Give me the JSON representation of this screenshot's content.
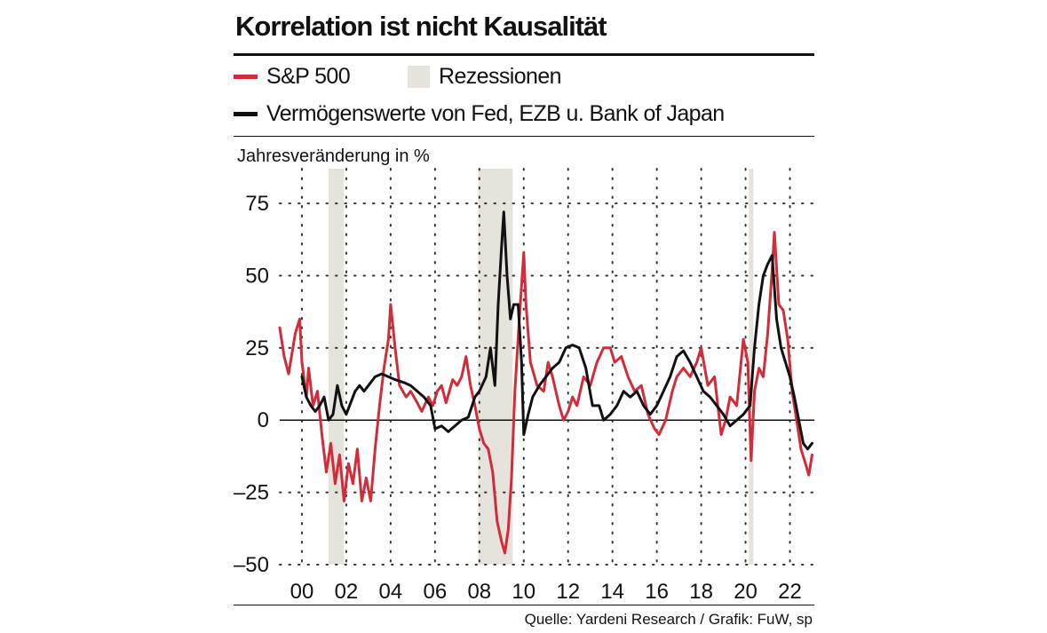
{
  "header": {
    "title": "Korrelation ist nicht Kausalität"
  },
  "legend": {
    "sp500": "S&P 500",
    "recessions": "Rezessionen",
    "assets": "Vermögenswerte von Fed, EZB u. Bank of Japan"
  },
  "source": "Quelle: Yardeni Research / Grafik: FuW, sp",
  "colors": {
    "sp500": "#d22b3a",
    "assets": "#111111",
    "recession": "#e6e3dc",
    "grid": "#333333"
  },
  "chart_data": {
    "type": "line",
    "title": "Korrelation ist nicht Kausalität",
    "ylabel": "Jahresveränderung in %",
    "xlabel": "",
    "x_unit": "year",
    "xlim": [
      1999,
      2023.1
    ],
    "ylim": [
      -50,
      87
    ],
    "y_ticks": [
      75,
      50,
      25,
      0,
      -25,
      -50
    ],
    "y_tick_labels": [
      "75",
      "50",
      "25",
      "0",
      "–25",
      "–50"
    ],
    "x_ticks": [
      2000,
      2002,
      2004,
      2006,
      2008,
      2010,
      2012,
      2014,
      2016,
      2018,
      2020,
      2022
    ],
    "x_tick_labels": [
      "00",
      "02",
      "04",
      "06",
      "08",
      "10",
      "12",
      "14",
      "16",
      "18",
      "20",
      "22"
    ],
    "grid": true,
    "legend_position": "top",
    "recessions": [
      [
        2001.2,
        2001.9
      ],
      [
        2007.95,
        2009.5
      ],
      [
        2020.15,
        2020.35
      ]
    ],
    "series": [
      {
        "name": "S&P 500",
        "color": "#d22b3a",
        "points": [
          [
            1999.0,
            32
          ],
          [
            1999.2,
            22
          ],
          [
            1999.4,
            16
          ],
          [
            1999.7,
            30
          ],
          [
            1999.9,
            35
          ],
          [
            2000.0,
            20
          ],
          [
            2000.2,
            8
          ],
          [
            2000.3,
            18
          ],
          [
            2000.5,
            5
          ],
          [
            2000.7,
            10
          ],
          [
            2000.9,
            -5
          ],
          [
            2001.1,
            -18
          ],
          [
            2001.3,
            -8
          ],
          [
            2001.5,
            -22
          ],
          [
            2001.7,
            -12
          ],
          [
            2001.9,
            -28
          ],
          [
            2002.1,
            -15
          ],
          [
            2002.3,
            -22
          ],
          [
            2002.5,
            -10
          ],
          [
            2002.7,
            -28
          ],
          [
            2002.9,
            -20
          ],
          [
            2003.1,
            -28
          ],
          [
            2003.3,
            -10
          ],
          [
            2003.5,
            5
          ],
          [
            2003.7,
            18
          ],
          [
            2003.9,
            28
          ],
          [
            2004.0,
            40
          ],
          [
            2004.2,
            25
          ],
          [
            2004.4,
            12
          ],
          [
            2004.7,
            8
          ],
          [
            2004.9,
            10
          ],
          [
            2005.2,
            6
          ],
          [
            2005.4,
            3
          ],
          [
            2005.7,
            8
          ],
          [
            2005.9,
            5
          ],
          [
            2006.1,
            10
          ],
          [
            2006.3,
            12
          ],
          [
            2006.5,
            6
          ],
          [
            2006.8,
            14
          ],
          [
            2007.0,
            12
          ],
          [
            2007.2,
            15
          ],
          [
            2007.4,
            22
          ],
          [
            2007.6,
            12
          ],
          [
            2007.8,
            5
          ],
          [
            2008.0,
            -3
          ],
          [
            2008.2,
            -8
          ],
          [
            2008.4,
            -10
          ],
          [
            2008.6,
            -18
          ],
          [
            2008.8,
            -35
          ],
          [
            2009.0,
            -42
          ],
          [
            2009.15,
            -46
          ],
          [
            2009.3,
            -38
          ],
          [
            2009.45,
            -20
          ],
          [
            2009.6,
            10
          ],
          [
            2009.8,
            35
          ],
          [
            2010.0,
            58
          ],
          [
            2010.1,
            40
          ],
          [
            2010.3,
            20
          ],
          [
            2010.6,
            12
          ],
          [
            2010.9,
            10
          ],
          [
            2011.1,
            20
          ],
          [
            2011.3,
            15
          ],
          [
            2011.6,
            5
          ],
          [
            2011.8,
            0
          ],
          [
            2012.0,
            3
          ],
          [
            2012.2,
            8
          ],
          [
            2012.4,
            5
          ],
          [
            2012.7,
            15
          ],
          [
            2013.0,
            12
          ],
          [
            2013.3,
            20
          ],
          [
            2013.6,
            25
          ],
          [
            2013.9,
            25
          ],
          [
            2014.1,
            20
          ],
          [
            2014.4,
            22
          ],
          [
            2014.7,
            15
          ],
          [
            2015.0,
            10
          ],
          [
            2015.3,
            12
          ],
          [
            2015.6,
            2
          ],
          [
            2015.9,
            -3
          ],
          [
            2016.1,
            -5
          ],
          [
            2016.4,
            0
          ],
          [
            2016.7,
            10
          ],
          [
            2016.9,
            15
          ],
          [
            2017.2,
            18
          ],
          [
            2017.5,
            15
          ],
          [
            2017.8,
            20
          ],
          [
            2018.0,
            25
          ],
          [
            2018.3,
            12
          ],
          [
            2018.6,
            15
          ],
          [
            2018.9,
            -5
          ],
          [
            2019.1,
            0
          ],
          [
            2019.3,
            8
          ],
          [
            2019.6,
            5
          ],
          [
            2019.9,
            28
          ],
          [
            2020.1,
            20
          ],
          [
            2020.25,
            -14
          ],
          [
            2020.4,
            10
          ],
          [
            2020.6,
            18
          ],
          [
            2020.8,
            15
          ],
          [
            2021.0,
            30
          ],
          [
            2021.2,
            52
          ],
          [
            2021.3,
            65
          ],
          [
            2021.5,
            40
          ],
          [
            2021.7,
            38
          ],
          [
            2021.9,
            28
          ],
          [
            2022.1,
            10
          ],
          [
            2022.3,
            0
          ],
          [
            2022.5,
            -10
          ],
          [
            2022.7,
            -15
          ],
          [
            2022.85,
            -19
          ],
          [
            2023.0,
            -12
          ]
        ]
      },
      {
        "name": "Vermögenswerte von Fed, EZB u. Bank of Japan",
        "color": "#111111",
        "points": [
          [
            2000.0,
            15
          ],
          [
            2000.2,
            8
          ],
          [
            2000.4,
            5
          ],
          [
            2000.6,
            3
          ],
          [
            2000.8,
            5
          ],
          [
            2001.0,
            8
          ],
          [
            2001.2,
            0
          ],
          [
            2001.4,
            2
          ],
          [
            2001.6,
            12
          ],
          [
            2001.8,
            5
          ],
          [
            2002.0,
            2
          ],
          [
            2002.2,
            6
          ],
          [
            2002.4,
            10
          ],
          [
            2002.6,
            12
          ],
          [
            2002.8,
            10
          ],
          [
            2003.0,
            12
          ],
          [
            2003.3,
            15
          ],
          [
            2003.6,
            16
          ],
          [
            2003.9,
            15
          ],
          [
            2004.2,
            14
          ],
          [
            2004.6,
            13
          ],
          [
            2004.9,
            12
          ],
          [
            2005.2,
            10
          ],
          [
            2005.5,
            8
          ],
          [
            2005.8,
            5
          ],
          [
            2006.0,
            -3
          ],
          [
            2006.3,
            -2
          ],
          [
            2006.6,
            -4
          ],
          [
            2006.9,
            -2
          ],
          [
            2007.2,
            0
          ],
          [
            2007.5,
            1
          ],
          [
            2007.8,
            8
          ],
          [
            2008.0,
            10
          ],
          [
            2008.3,
            15
          ],
          [
            2008.5,
            25
          ],
          [
            2008.7,
            12
          ],
          [
            2008.85,
            40
          ],
          [
            2009.0,
            60
          ],
          [
            2009.1,
            72
          ],
          [
            2009.25,
            50
          ],
          [
            2009.4,
            35
          ],
          [
            2009.55,
            40
          ],
          [
            2009.75,
            40
          ],
          [
            2009.9,
            20
          ],
          [
            2010.0,
            -5
          ],
          [
            2010.2,
            2
          ],
          [
            2010.4,
            8
          ],
          [
            2010.7,
            12
          ],
          [
            2011.0,
            15
          ],
          [
            2011.3,
            18
          ],
          [
            2011.6,
            20
          ],
          [
            2011.9,
            25
          ],
          [
            2012.2,
            26
          ],
          [
            2012.5,
            25
          ],
          [
            2012.8,
            18
          ],
          [
            2013.1,
            5
          ],
          [
            2013.4,
            5
          ],
          [
            2013.6,
            0
          ],
          [
            2013.9,
            2
          ],
          [
            2014.2,
            5
          ],
          [
            2014.5,
            10
          ],
          [
            2014.8,
            8
          ],
          [
            2015.1,
            10
          ],
          [
            2015.4,
            5
          ],
          [
            2015.7,
            2
          ],
          [
            2016.0,
            5
          ],
          [
            2016.3,
            10
          ],
          [
            2016.6,
            15
          ],
          [
            2016.9,
            22
          ],
          [
            2017.2,
            24
          ],
          [
            2017.5,
            20
          ],
          [
            2017.8,
            15
          ],
          [
            2018.1,
            10
          ],
          [
            2018.4,
            8
          ],
          [
            2018.7,
            5
          ],
          [
            2019.0,
            2
          ],
          [
            2019.3,
            -2
          ],
          [
            2019.6,
            0
          ],
          [
            2019.9,
            2
          ],
          [
            2020.2,
            5
          ],
          [
            2020.4,
            25
          ],
          [
            2020.6,
            40
          ],
          [
            2020.8,
            50
          ],
          [
            2021.0,
            54
          ],
          [
            2021.2,
            57
          ],
          [
            2021.4,
            35
          ],
          [
            2021.6,
            25
          ],
          [
            2021.8,
            20
          ],
          [
            2022.0,
            15
          ],
          [
            2022.2,
            8
          ],
          [
            2022.4,
            0
          ],
          [
            2022.6,
            -8
          ],
          [
            2022.8,
            -10
          ],
          [
            2023.0,
            -8
          ]
        ]
      }
    ]
  }
}
